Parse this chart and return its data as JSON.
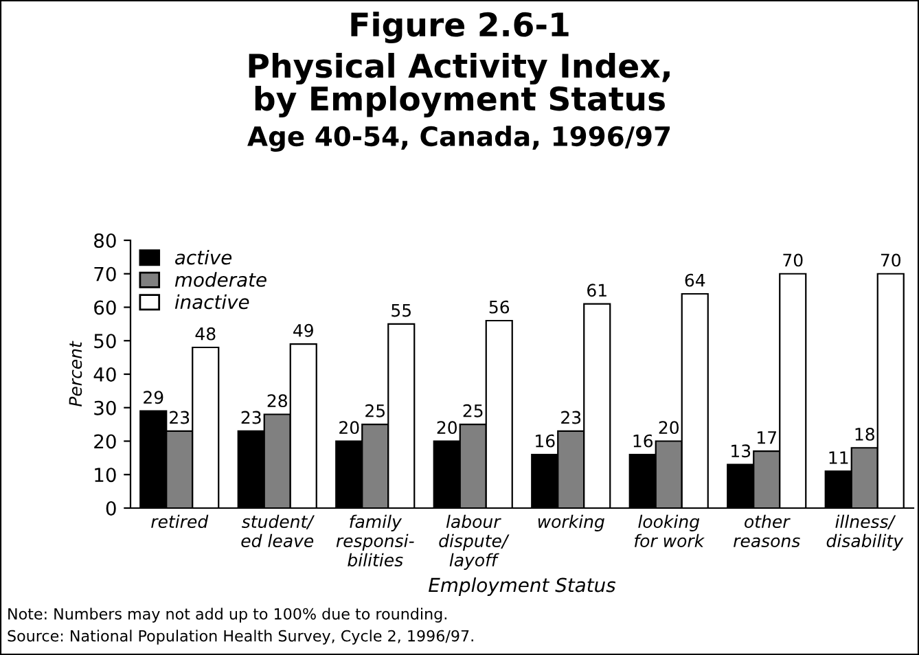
{
  "chart_data": {
    "type": "bar",
    "title": "Figure 2.6-1",
    "subtitle": "Physical Activity Index,\nby Employment Status\nAge 40-54, Canada, 1996/97",
    "xlabel": "Employment Status",
    "ylabel": "Percent",
    "categories": [
      "retired",
      "student/\ned leave",
      "family\nresponsi-\nbilities",
      "labour\ndispute/\nlayoff",
      "working",
      "looking\nfor work",
      "other\nreasons",
      "illness/\ndisability"
    ],
    "series": [
      {
        "name": "active",
        "color": "#000000",
        "values": [
          29,
          23,
          20,
          20,
          16,
          16,
          13,
          11
        ]
      },
      {
        "name": "moderate",
        "color": "#808080",
        "values": [
          23,
          28,
          25,
          25,
          23,
          20,
          17,
          18
        ]
      },
      {
        "name": "inactive",
        "color": "#ffffff",
        "values": [
          48,
          49,
          55,
          56,
          61,
          64,
          70,
          70
        ]
      }
    ],
    "ylim": [
      0,
      80
    ],
    "yticks": [
      0,
      10,
      20,
      30,
      40,
      50,
      60,
      70,
      80
    ],
    "grid": false,
    "legend": "top left",
    "data_labels": true,
    "annotations": [
      "Note: Numbers may not add up to 100% due to rounding.",
      "Source: National Population Health Survey, Cycle 2, 1996/97."
    ]
  }
}
